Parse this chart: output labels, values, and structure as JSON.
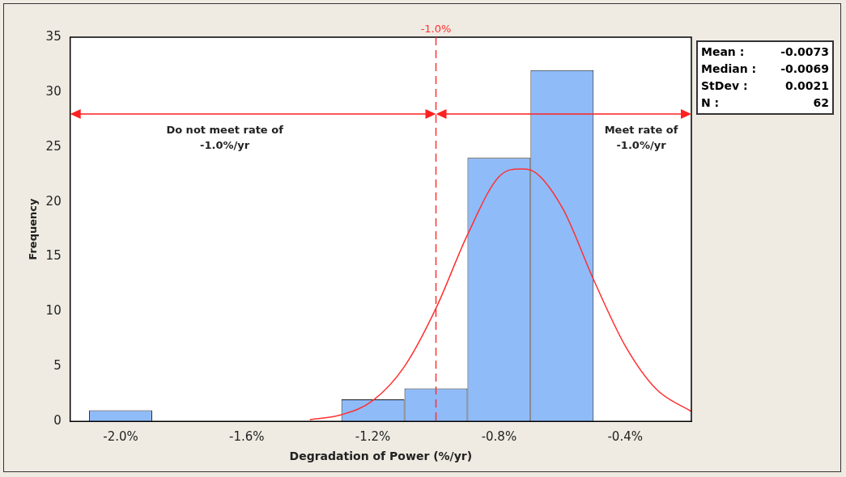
{
  "chart_data": {
    "type": "histogram",
    "xlabel": "Degradation of Power (%/yr)",
    "ylabel": "Frequency",
    "bins": [
      -2.1,
      -1.9,
      -1.7,
      -1.5,
      -1.3,
      -1.1,
      -0.9,
      -0.7,
      -0.5
    ],
    "values": [
      1,
      0,
      0,
      0,
      2,
      3,
      24,
      32
    ],
    "color": "#8fbbf9",
    "series": [
      {
        "type": "line",
        "color": "#ff3030",
        "x": [
          -1.4,
          -1.3,
          -1.2,
          -1.1,
          -1.0,
          -0.9,
          -0.8,
          -0.73,
          -0.7,
          -0.6,
          -0.5,
          -0.4,
          -0.3,
          -0.19
        ],
        "values": [
          0.15,
          0.6,
          1.9,
          5.0,
          10.3,
          17.0,
          22.3,
          23.0,
          22.9,
          19.5,
          12.9,
          6.9,
          2.9,
          0.9
        ]
      }
    ],
    "xlim": [
      -2.16,
      -0.19
    ],
    "xticks": [
      {
        "value": -2.0,
        "label": "-2.0%"
      },
      {
        "value": -1.6,
        "label": "-1.6%"
      },
      {
        "value": -1.2,
        "label": "-1.2%"
      },
      {
        "value": -0.8,
        "label": "-0.8%"
      },
      {
        "value": -0.4,
        "label": "-0.4%"
      }
    ],
    "ylim": [
      0,
      35
    ],
    "yticks": [
      0,
      5,
      10,
      15,
      20,
      25,
      30,
      35
    ],
    "ref_lines": [
      {
        "axis": "x",
        "value": -1.0,
        "label": "-1.0%",
        "color": "#ff3030",
        "line_style": "dashed"
      }
    ],
    "annotations": [
      "Do not meet rate of -1.0%/yr",
      "Meet rate of -1.0%/yr",
      "Mean : -0.0073",
      "Median : -0.0069",
      "StDev : 0.0021",
      "N : 62"
    ],
    "grid": false,
    "legend": false
  }
}
